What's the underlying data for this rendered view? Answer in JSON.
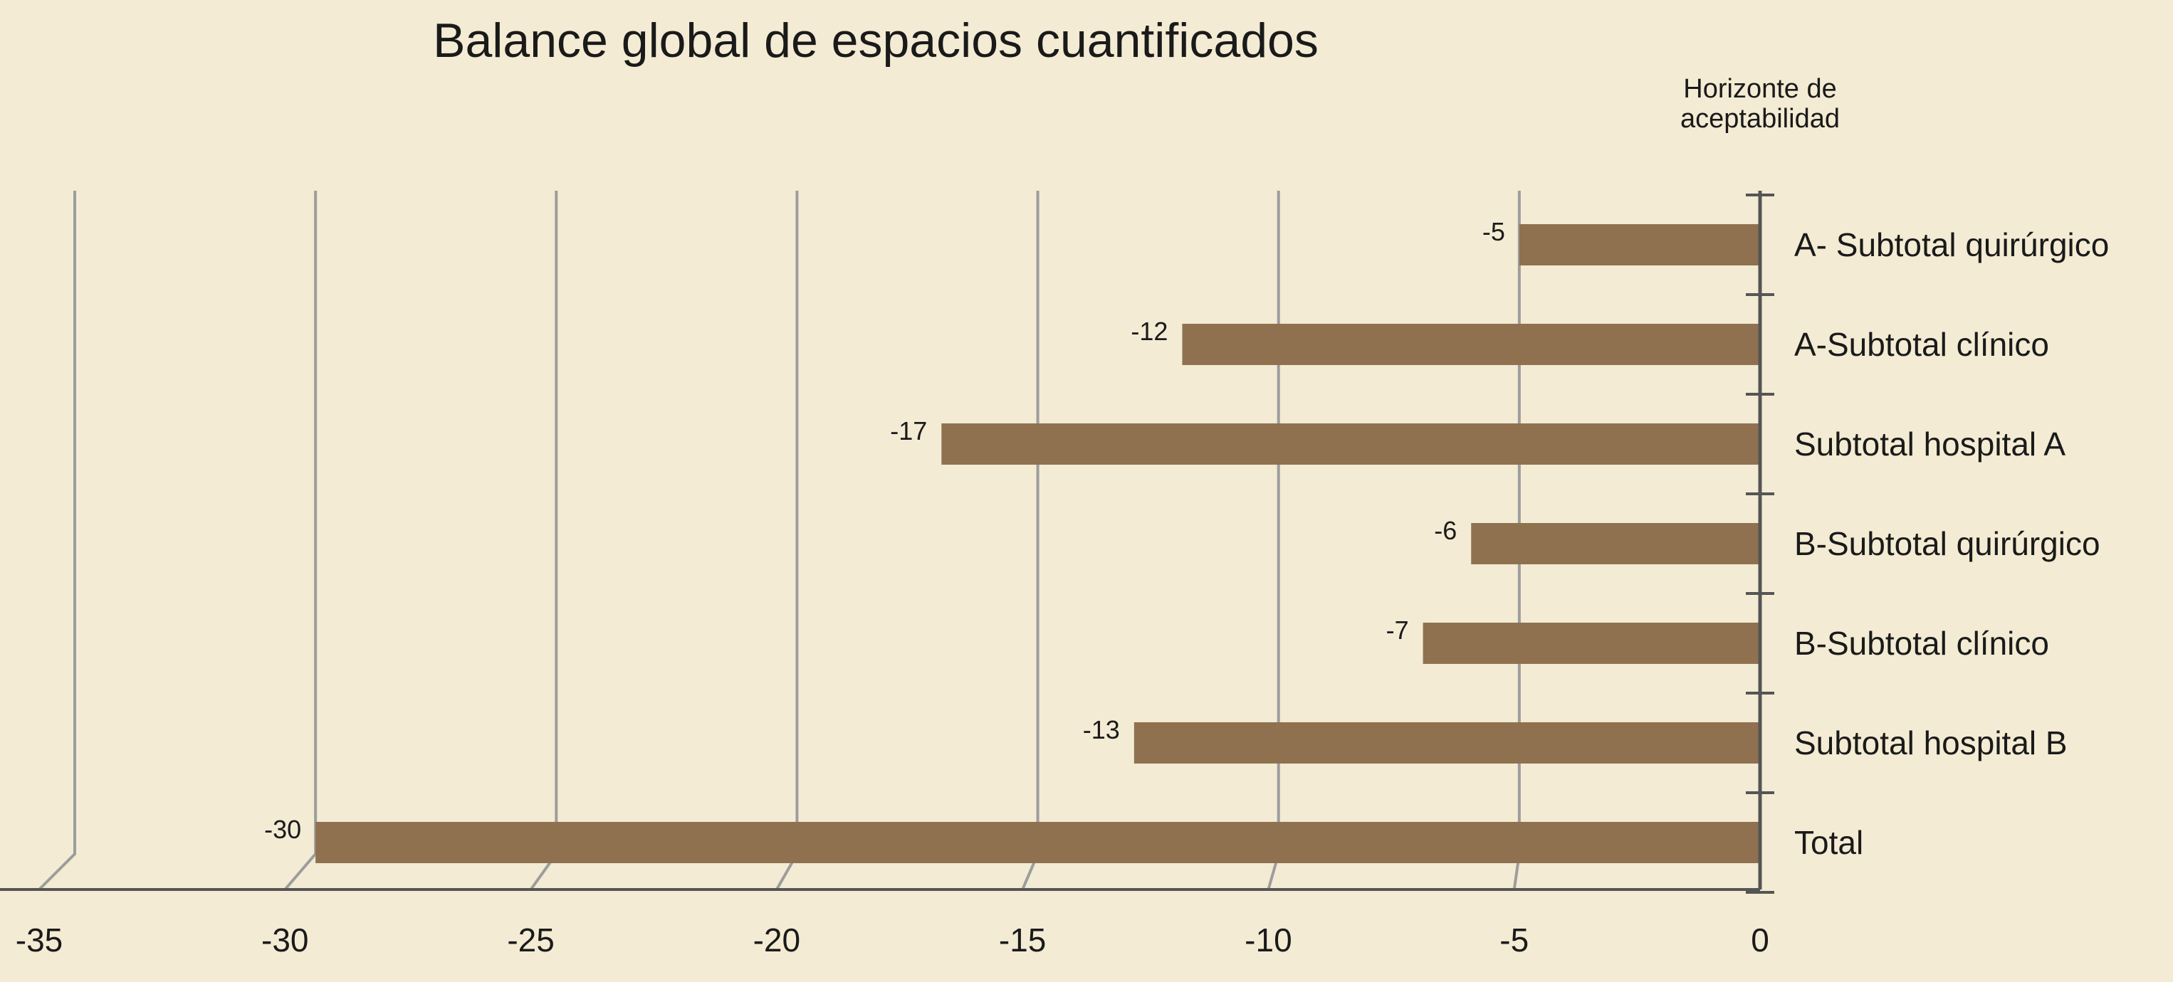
{
  "chart_data": {
    "type": "bar",
    "orientation": "horizontal",
    "title": "Balance global de espacios cuantificados",
    "reference_label": "Horizonte de aceptabilidad",
    "categories": [
      "A- Subtotal quirúrgico",
      "A-Subtotal clínico",
      "Subtotal hospital A",
      "B-Subtotal quirúrgico",
      "B-Subtotal clínico",
      "Subtotal hospital B",
      "Total"
    ],
    "values": [
      -5,
      -12,
      -17,
      -6,
      -7,
      -13,
      -30
    ],
    "data_labels": [
      "-5",
      "-12",
      "-17",
      "-6",
      "-7",
      "-13",
      "-30"
    ],
    "xlim": [
      -35,
      0
    ],
    "xticks": [
      -35,
      -30,
      -25,
      -20,
      -15,
      -10,
      -5,
      0
    ],
    "xtick_labels": [
      "-35",
      "-30",
      "-25",
      "-20",
      "-15",
      "-10",
      "-5",
      "0"
    ],
    "grid": true,
    "bar_color": "#8f7150",
    "background_color": "#f3ebd3",
    "grid_color": "#9d9d9d"
  }
}
